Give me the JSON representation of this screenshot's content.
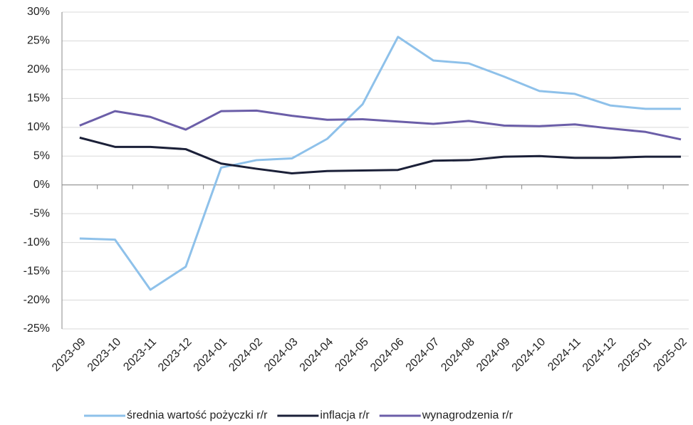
{
  "chart_data": {
    "type": "line",
    "categories": [
      "2023-09",
      "2023-10",
      "2023-11",
      "2023-12",
      "2024-01",
      "2024-02",
      "2024-03",
      "2024-04",
      "2024-05",
      "2024-06",
      "2024-07",
      "2024-08",
      "2024-09",
      "2024-10",
      "2024-11",
      "2024-12",
      "2025-01",
      "2025-02"
    ],
    "series": [
      {
        "name": "średnia wartość pożyczki r/r",
        "color": "#8ec1ea",
        "values": [
          -9.3,
          -9.5,
          -18.2,
          -14.2,
          3.0,
          4.3,
          4.6,
          8.0,
          14.0,
          25.7,
          21.6,
          21.1,
          18.8,
          16.3,
          15.8,
          13.8,
          13.2,
          13.2
        ]
      },
      {
        "name": "inflacja r/r",
        "color": "#1b2038",
        "values": [
          8.2,
          6.6,
          6.6,
          6.2,
          3.7,
          2.8,
          2.0,
          2.4,
          2.5,
          2.6,
          4.2,
          4.3,
          4.9,
          5.0,
          4.7,
          4.7,
          4.9,
          4.9
        ]
      },
      {
        "name": "wynagrodzenia r/r",
        "color": "#6b5ea8",
        "values": [
          10.3,
          12.8,
          11.8,
          9.6,
          12.8,
          12.9,
          12.0,
          11.3,
          11.4,
          11.0,
          10.6,
          11.1,
          10.3,
          10.2,
          10.5,
          9.8,
          9.2,
          7.9
        ]
      }
    ],
    "ylim": [
      -25,
      30
    ],
    "yticks": [
      {
        "value": -25,
        "label": "-25%"
      },
      {
        "value": -20,
        "label": "-20%"
      },
      {
        "value": -15,
        "label": "-15%"
      },
      {
        "value": -10,
        "label": "-10%"
      },
      {
        "value": -5,
        "label": "-5%"
      },
      {
        "value": 0,
        "label": "0%"
      },
      {
        "value": 5,
        "label": "5%"
      },
      {
        "value": 10,
        "label": "10%"
      },
      {
        "value": 15,
        "label": "15%"
      },
      {
        "value": 20,
        "label": "20%"
      },
      {
        "value": 25,
        "label": "25%"
      },
      {
        "value": 30,
        "label": "30%"
      }
    ],
    "grid": true,
    "legend": "bottom"
  }
}
